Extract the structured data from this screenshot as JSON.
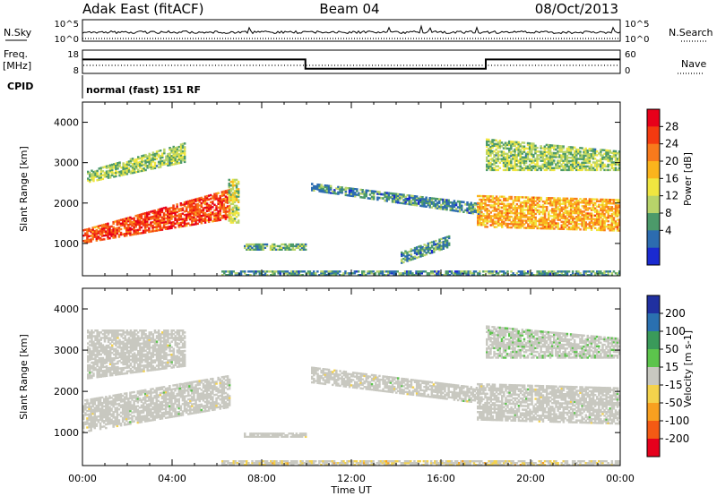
{
  "header": {
    "radar": "Adak East (fitACF)",
    "beam": "Beam 04",
    "date": "08/Oct/2013"
  },
  "summary": {
    "nsky_label": "N.Sky",
    "nsky_ticks": [
      "10^5",
      "10^0"
    ],
    "nsearch_label": "N.Search",
    "freq_label": "Freq.",
    "freq_unit": "[MHz]",
    "freq_ticks": [
      "18",
      "8"
    ],
    "nave_ticks": [
      "60",
      "0"
    ],
    "nave_label": "Nave",
    "cpid_label": "CPID",
    "cpid_value": "normal (fast) 151 RF"
  },
  "axes": {
    "ylabel": "Slant Range [km]",
    "yticks": [
      "4000",
      "3000",
      "2000",
      "1000"
    ],
    "xticks": [
      "00:00",
      "04:00",
      "08:00",
      "12:00",
      "16:00",
      "20:00",
      "00:00"
    ],
    "xlabel": "Time UT"
  },
  "colorbars": {
    "power": {
      "label": "Power [dB]",
      "ticks": [
        "28",
        "24",
        "20",
        "16",
        "12",
        "8",
        "4"
      ],
      "colors": [
        "#e8001a",
        "#f43a10",
        "#f87a1c",
        "#fbb41c",
        "#f0e640",
        "#b8d46a",
        "#4c9a6a",
        "#2c6cb0",
        "#1a2ad0"
      ]
    },
    "velocity": {
      "label": "Velocity [m s-1]",
      "ticks": [
        "200",
        "100",
        "50",
        "15",
        "-15",
        "-50",
        "-100",
        "-200"
      ],
      "colors": [
        "#2030a0",
        "#2a70b0",
        "#3a9a5a",
        "#5cc44c",
        "#c8c8c0",
        "#f4d24c",
        "#f8a020",
        "#f45a14",
        "#e6001c"
      ]
    }
  },
  "chart_data": [
    {
      "type": "line",
      "title": "",
      "series": [
        {
          "x": [
            0,
            2,
            4,
            6,
            8,
            10,
            12,
            14,
            16,
            18,
            20,
            22,
            24
          ],
          "values": [
            3,
            3,
            3,
            3,
            3,
            3,
            3,
            3,
            3,
            3,
            3,
            3,
            3
          ]
        }
      ],
      "xlim": [
        0,
        24
      ]
    },
    {
      "type": "line",
      "title": "",
      "series": [
        {
          "x": [
            0,
            9.95,
            9.95,
            18,
            18,
            24
          ],
          "values": [
            14,
            14,
            10,
            10,
            14,
            14
          ]
        }
      ],
      "ylim": [
        8,
        18
      ],
      "xlim": [
        0,
        24
      ]
    },
    {
      "type": "heatmap",
      "title": "Power",
      "xlabel": "Time UT",
      "ylabel": "Slant Range [km]",
      "xlim": [
        0,
        24
      ],
      "ylim": [
        200,
        4500
      ],
      "color_label": "Power [dB]",
      "clim": [
        0,
        32
      ],
      "bands": [
        {
          "t": [
            0,
            6.6
          ],
          "range_lo": [
            1000,
            1600
          ],
          "range_hi": [
            1350,
            2350
          ],
          "value": 26
        },
        {
          "t": [
            0.2,
            4.6
          ],
          "range_lo": [
            2500,
            3000
          ],
          "range_hi": [
            2800,
            3500
          ],
          "value": 12
        },
        {
          "t": [
            6.5,
            7.0
          ],
          "range_lo": [
            1500,
            1500
          ],
          "range_hi": [
            2600,
            2600
          ],
          "value": 14
        },
        {
          "t": [
            7.2,
            10.0
          ],
          "range_lo": [
            830,
            830
          ],
          "range_hi": [
            1000,
            1000
          ],
          "value": 10
        },
        {
          "t": [
            10.2,
            17.8
          ],
          "range_lo": [
            2300,
            1700
          ],
          "range_hi": [
            2500,
            2000
          ],
          "value": 8
        },
        {
          "t": [
            14.2,
            16.4
          ],
          "range_lo": [
            500,
            900
          ],
          "range_hi": [
            800,
            1200
          ],
          "value": 8
        },
        {
          "t": [
            17.6,
            24.0
          ],
          "range_lo": [
            1400,
            1300
          ],
          "range_hi": [
            2200,
            2100
          ],
          "value": 20
        },
        {
          "t": [
            18.0,
            24.0
          ],
          "range_lo": [
            2800,
            2800
          ],
          "range_hi": [
            3600,
            3300
          ],
          "value": 12
        },
        {
          "t": [
            6.2,
            24.0
          ],
          "range_lo": [
            200,
            200
          ],
          "range_hi": [
            330,
            330
          ],
          "value": 8
        }
      ]
    },
    {
      "type": "heatmap",
      "title": "Velocity",
      "xlabel": "Time UT",
      "ylabel": "Slant Range [km]",
      "xlim": [
        0,
        24
      ],
      "ylim": [
        200,
        4500
      ],
      "color_label": "Velocity [m s-1]",
      "clim": [
        -250,
        250
      ],
      "bands": [
        {
          "t": [
            0,
            6.6
          ],
          "range_lo": [
            1000,
            1600
          ],
          "range_hi": [
            1800,
            2400
          ],
          "value": 0
        },
        {
          "t": [
            0.2,
            4.6
          ],
          "range_lo": [
            2300,
            2600
          ],
          "range_hi": [
            3500,
            3500
          ],
          "value": 0
        },
        {
          "t": [
            4.3,
            4.9
          ],
          "range_lo": [
            2000,
            2000
          ],
          "range_hi": [
            2200,
            2200
          ],
          "value": 30
        },
        {
          "t": [
            7.2,
            10.0
          ],
          "range_lo": [
            880,
            880
          ],
          "range_hi": [
            1000,
            1000
          ],
          "value": 0
        },
        {
          "t": [
            10.2,
            17.8
          ],
          "range_lo": [
            2200,
            1700
          ],
          "range_hi": [
            2600,
            2100
          ],
          "value": 0
        },
        {
          "t": [
            17.6,
            24.0
          ],
          "range_lo": [
            1300,
            1200
          ],
          "range_hi": [
            2200,
            2100
          ],
          "value": 0
        },
        {
          "t": [
            18.0,
            24.0
          ],
          "range_lo": [
            2800,
            2800
          ],
          "range_hi": [
            3600,
            3300
          ],
          "value": 30
        },
        {
          "t": [
            6.2,
            24.0
          ],
          "range_lo": [
            200,
            200
          ],
          "range_hi": [
            330,
            330
          ],
          "value": -60
        }
      ]
    }
  ]
}
